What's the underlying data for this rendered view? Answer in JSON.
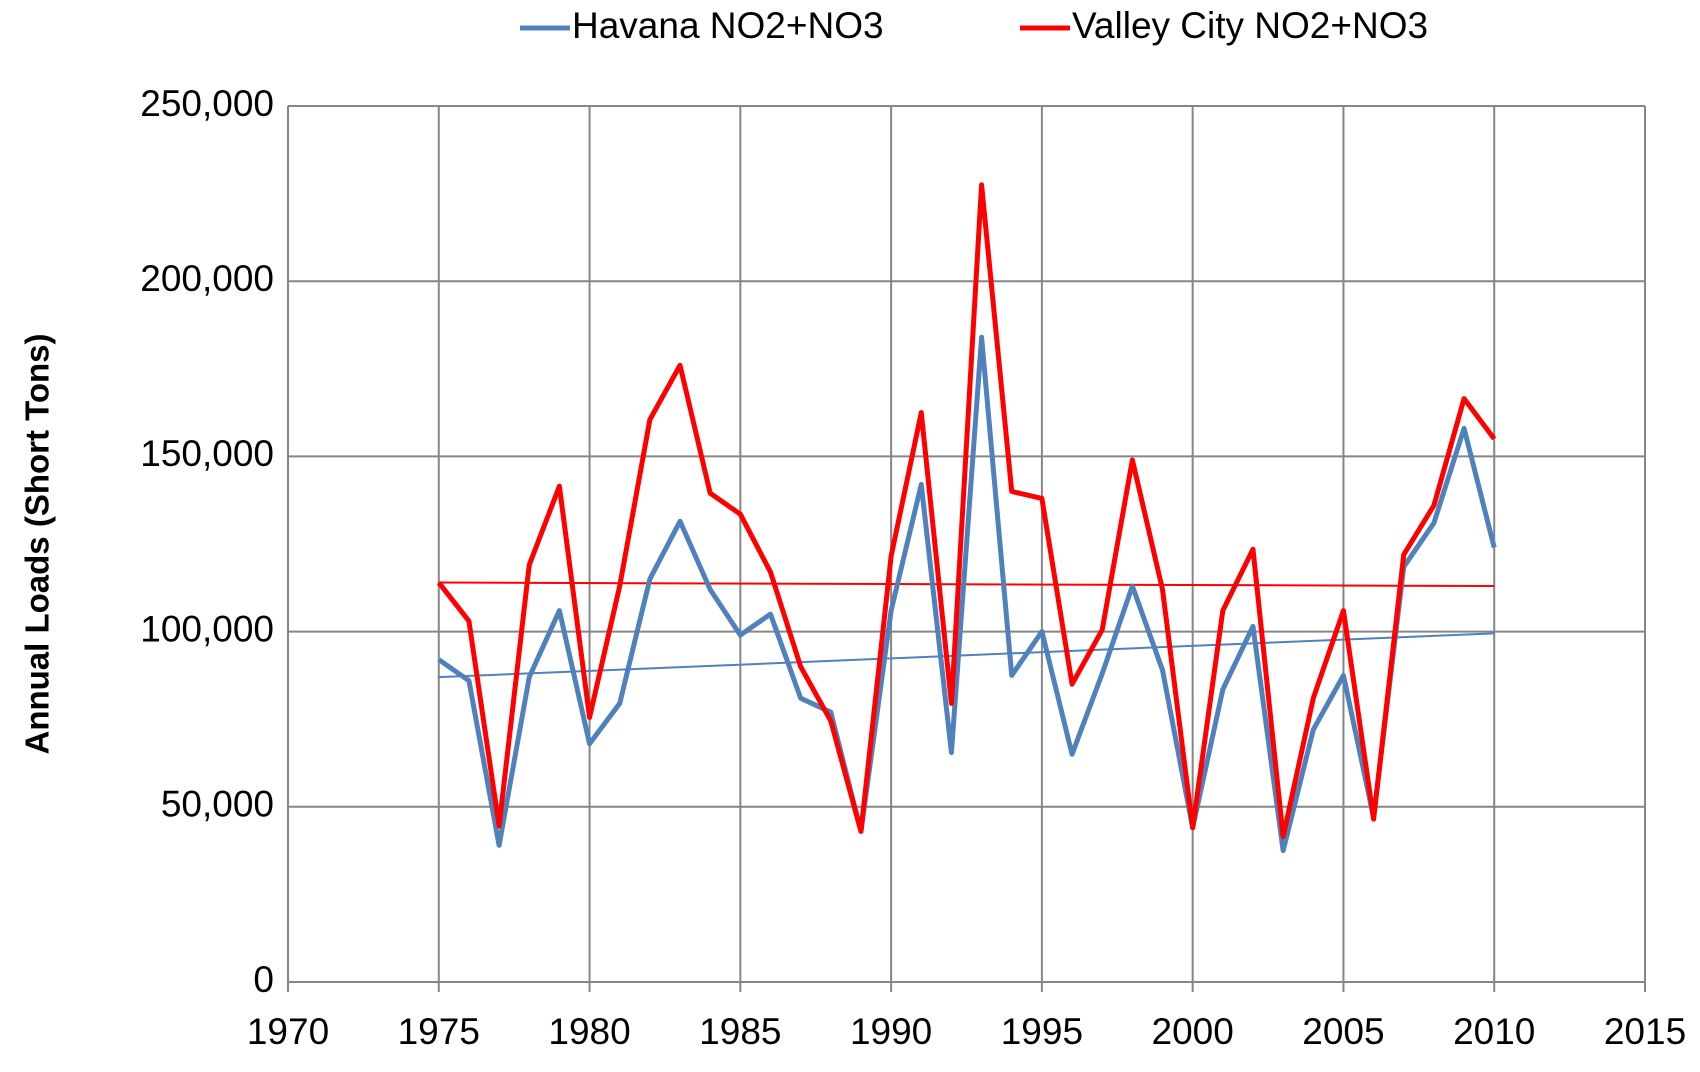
{
  "chart_data": {
    "type": "line",
    "y_label": "Annual Loads (Short Tons)",
    "x": [
      1975,
      1976,
      1977,
      1978,
      1979,
      1980,
      1981,
      1982,
      1983,
      1984,
      1985,
      1986,
      1987,
      1988,
      1989,
      1990,
      1991,
      1992,
      1993,
      1994,
      1995,
      1996,
      1997,
      1998,
      1999,
      2000,
      2001,
      2002,
      2003,
      2004,
      2005,
      2006,
      2007,
      2008,
      2009,
      2010
    ],
    "series": [
      {
        "name": "Havana NO2+NO3",
        "color": "#4f81bd",
        "values": [
          92000,
          86000,
          39000,
          87000,
          106000,
          68000,
          79500,
          115000,
          131500,
          112000,
          99000,
          105000,
          81000,
          77000,
          43000,
          106000,
          142000,
          65500,
          184000,
          87500,
          100000,
          65000,
          88000,
          113000,
          89000,
          44000,
          83500,
          101500,
          37500,
          72000,
          87500,
          47000,
          118500,
          131000,
          158000,
          124000
        ],
        "trend_x": [
          1975,
          2010
        ],
        "trend_values": [
          87000,
          99500
        ]
      },
      {
        "name": "Valley City NO2+NO3",
        "color": "#ff0000",
        "values": [
          114000,
          103000,
          44500,
          119000,
          141500,
          75500,
          113000,
          160500,
          176000,
          139500,
          133500,
          117000,
          90000,
          74500,
          43000,
          121500,
          162500,
          79500,
          227500,
          140000,
          138000,
          85000,
          100500,
          149000,
          112000,
          44000,
          106000,
          123500,
          41500,
          81000,
          106000,
          46500,
          122000,
          136000,
          166500,
          155000
        ],
        "trend_x": [
          1975,
          2010
        ],
        "trend_values": [
          114000,
          113000
        ]
      }
    ],
    "xlim": [
      1970,
      2015
    ],
    "xticks": [
      1970,
      1975,
      1980,
      1985,
      1990,
      1995,
      2000,
      2005,
      2010,
      2015
    ],
    "ylim": [
      0,
      250000
    ],
    "yticks": [
      0,
      {
        "value": 50000,
        "label": "50,000"
      },
      {
        "value": 100000,
        "label": "100,000"
      },
      {
        "value": 150000,
        "label": "150,000"
      },
      {
        "value": 200000,
        "label": "200,000"
      },
      {
        "value": 250000,
        "label": "250,000"
      }
    ],
    "grid": true,
    "legend": "top"
  }
}
